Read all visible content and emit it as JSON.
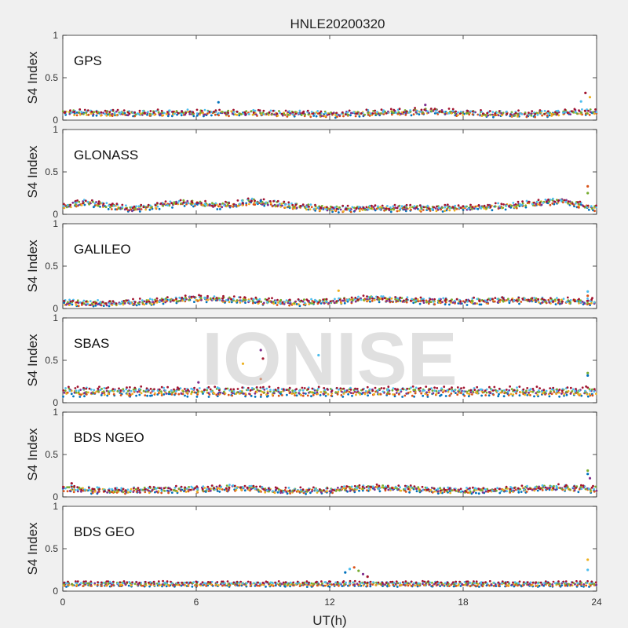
{
  "chart_data": {
    "type": "scatter",
    "title": "HNLE20200320",
    "xlabel": "UT(h)",
    "xlim": [
      0,
      24
    ],
    "xticks": [
      "0",
      "6",
      "12",
      "18",
      "24"
    ],
    "ylabel": "S4 Index",
    "ylim": [
      0,
      1
    ],
    "yticks": [
      "0",
      "0.5",
      "1"
    ],
    "grid": false,
    "watermark": "IONISE",
    "colors": [
      "#0072bd",
      "#d95319",
      "#edb120",
      "#7e2f8e",
      "#77ac30",
      "#4dbeee",
      "#a2142f"
    ],
    "panels": [
      {
        "label": "GPS",
        "baseline": 0.08,
        "series_profile": [
          [
            0,
            0.09
          ],
          [
            3,
            0.08
          ],
          [
            6,
            0.09
          ],
          [
            9,
            0.08
          ],
          [
            12,
            0.07
          ],
          [
            15,
            0.09
          ],
          [
            16.5,
            0.11
          ],
          [
            18,
            0.08
          ],
          [
            21,
            0.07
          ],
          [
            23.5,
            0.1
          ],
          [
            24,
            0.09
          ]
        ],
        "outliers": [
          [
            7.0,
            0.21
          ],
          [
            16.3,
            0.18
          ],
          [
            23.5,
            0.32
          ],
          [
            23.7,
            0.27
          ],
          [
            23.3,
            0.22
          ]
        ]
      },
      {
        "label": "GLONASS",
        "baseline": 0.06,
        "series_profile": [
          [
            0,
            0.09
          ],
          [
            1,
            0.14
          ],
          [
            3,
            0.06
          ],
          [
            5.5,
            0.14
          ],
          [
            7,
            0.1
          ],
          [
            8.5,
            0.15
          ],
          [
            10,
            0.11
          ],
          [
            12,
            0.06
          ],
          [
            15,
            0.07
          ],
          [
            18,
            0.07
          ],
          [
            20,
            0.1
          ],
          [
            22.5,
            0.16
          ],
          [
            24,
            0.06
          ]
        ],
        "outliers": [
          [
            23.6,
            0.33
          ],
          [
            23.6,
            0.25
          ],
          [
            8.9,
            0.16
          ]
        ]
      },
      {
        "label": "GALILEO",
        "baseline": 0.07,
        "series_profile": [
          [
            0,
            0.07
          ],
          [
            2,
            0.06
          ],
          [
            4,
            0.08
          ],
          [
            6,
            0.12
          ],
          [
            8,
            0.1
          ],
          [
            10,
            0.07
          ],
          [
            12,
            0.08
          ],
          [
            14,
            0.12
          ],
          [
            16,
            0.09
          ],
          [
            18,
            0.08
          ],
          [
            20,
            0.1
          ],
          [
            22,
            0.09
          ],
          [
            24,
            0.08
          ]
        ],
        "outliers": [
          [
            12.4,
            0.21
          ],
          [
            23.6,
            0.2
          ],
          [
            23.6,
            0.15
          ]
        ]
      },
      {
        "label": "SBAS",
        "baseline": 0.13,
        "series_profile": [
          [
            0,
            0.13
          ],
          [
            6,
            0.13
          ],
          [
            12,
            0.13
          ],
          [
            18,
            0.13
          ],
          [
            24,
            0.13
          ]
        ],
        "outliers": [
          [
            8.9,
            0.62
          ],
          [
            9.0,
            0.52
          ],
          [
            8.1,
            0.46
          ],
          [
            11.5,
            0.56
          ],
          [
            8.9,
            0.28
          ],
          [
            23.6,
            0.35
          ],
          [
            23.6,
            0.32
          ],
          [
            6.1,
            0.24
          ]
        ]
      },
      {
        "label": "BDS NGEO",
        "baseline": 0.07,
        "series_profile": [
          [
            0,
            0.1
          ],
          [
            2,
            0.07
          ],
          [
            4,
            0.08
          ],
          [
            6,
            0.09
          ],
          [
            8,
            0.11
          ],
          [
            9.5,
            0.07
          ],
          [
            12,
            0.08
          ],
          [
            14,
            0.11
          ],
          [
            16,
            0.09
          ],
          [
            18,
            0.07
          ],
          [
            20,
            0.08
          ],
          [
            22,
            0.11
          ],
          [
            24,
            0.09
          ]
        ],
        "outliers": [
          [
            23.6,
            0.31
          ],
          [
            23.6,
            0.27
          ],
          [
            23.7,
            0.22
          ],
          [
            0.4,
            0.16
          ]
        ]
      },
      {
        "label": "BDS GEO",
        "baseline": 0.09,
        "series_profile": [
          [
            0,
            0.1
          ],
          [
            6,
            0.1
          ],
          [
            12,
            0.1
          ],
          [
            18,
            0.1
          ],
          [
            24,
            0.1
          ]
        ],
        "outliers": [
          [
            12.9,
            0.26
          ],
          [
            13.1,
            0.28
          ],
          [
            13.3,
            0.24
          ],
          [
            12.7,
            0.22
          ],
          [
            13.5,
            0.2
          ],
          [
            13.7,
            0.17
          ],
          [
            23.6,
            0.37
          ],
          [
            23.6,
            0.25
          ]
        ]
      }
    ]
  }
}
